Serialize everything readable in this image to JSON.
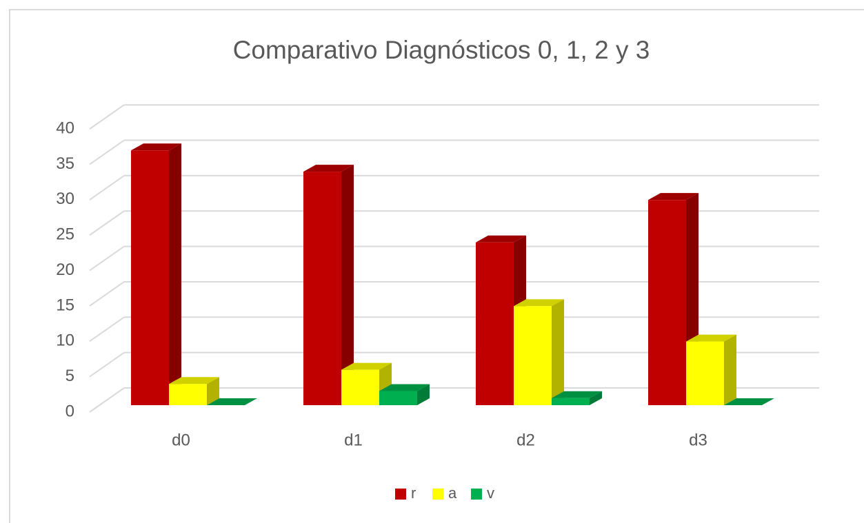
{
  "chart_data": {
    "type": "bar3d",
    "title": "Comparativo Diagnósticos 0, 1, 2 y 3",
    "categories": [
      "d0",
      "d1",
      "d2",
      "d3"
    ],
    "series": [
      {
        "name": "r",
        "color": "#c00000",
        "values": [
          36,
          33,
          23,
          29
        ]
      },
      {
        "name": "a",
        "color": "#ffff00",
        "values": [
          3,
          5,
          14,
          9
        ]
      },
      {
        "name": "v",
        "color": "#00b050",
        "values": [
          0,
          2,
          1,
          0
        ]
      }
    ],
    "ylim": [
      0,
      40
    ],
    "yticks": [
      0,
      5,
      10,
      15,
      20,
      25,
      30,
      35,
      40
    ],
    "grid": true,
    "legend": "bottom"
  }
}
